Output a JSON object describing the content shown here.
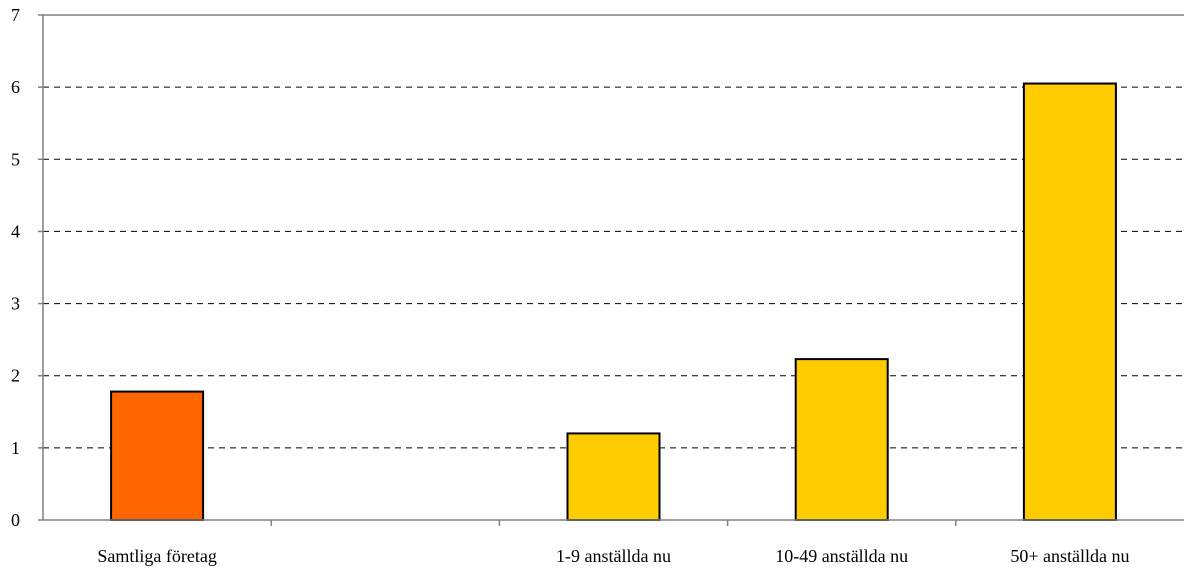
{
  "chart_data": {
    "type": "bar",
    "categories": [
      "Samtliga företag",
      "",
      "1-9 anställda nu",
      "10-49 anställda nu",
      "50+ anställda nu"
    ],
    "values": [
      1.78,
      null,
      1.2,
      2.23,
      6.05
    ],
    "colors": [
      "#FF6600",
      null,
      "#FFCC00",
      "#FFCC00",
      "#FFCC00"
    ],
    "title": "",
    "xlabel": "",
    "ylabel": "",
    "ylim": [
      0,
      7
    ],
    "yticks": [
      "0",
      "1",
      "2",
      "3",
      "4",
      "5",
      "6",
      "7"
    ],
    "grid": "horizontal-dashed",
    "legend": "none"
  }
}
